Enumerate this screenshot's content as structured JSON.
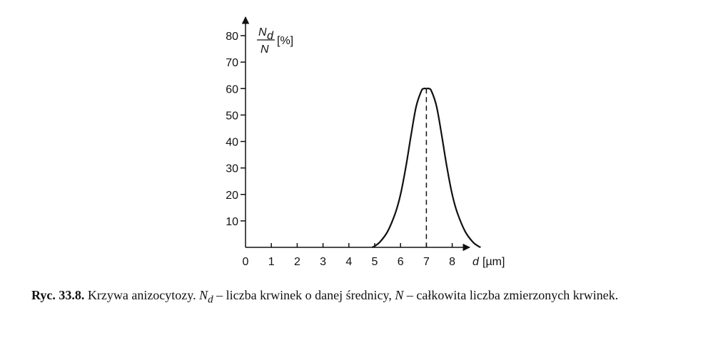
{
  "chart_data": {
    "type": "line",
    "x_tick_labels": [
      "0",
      "1",
      "2",
      "3",
      "4",
      "5",
      "6",
      "7",
      "8"
    ],
    "y_tick_labels": [
      "10",
      "20",
      "30",
      "40",
      "50",
      "60",
      "70",
      "80"
    ],
    "xlim": [
      0,
      10
    ],
    "ylim": [
      0,
      85
    ],
    "xlabel": {
      "var": "d",
      "unit": "[µm]"
    },
    "ylabel": {
      "numerator": "N",
      "numerator_sub": "d",
      "denominator": "N",
      "unit": "[%]"
    },
    "grid": false,
    "series": [
      {
        "x": [
          4.9,
          5.0,
          5.2,
          5.5,
          5.8,
          6.0,
          6.2,
          6.4,
          6.6,
          6.8,
          6.9,
          7.0,
          7.1,
          7.2,
          7.4,
          7.6,
          7.8,
          8.0,
          8.2,
          8.5,
          8.8,
          9.0,
          9.1
        ],
        "y": [
          0,
          0.5,
          2,
          6,
          13,
          20,
          30,
          42,
          53,
          59,
          60,
          60,
          60,
          59,
          53,
          42,
          30,
          20,
          13,
          6,
          2,
          0.5,
          0
        ]
      }
    ],
    "annotation": {
      "type": "dashed-vertical",
      "x": 7,
      "y": 60
    }
  },
  "caption": {
    "label": "Ryc. 33.8.",
    "text_before": "Krzywa anizocytozy.",
    "sym_nd": "N",
    "sym_nd_sub": "d",
    "text_nd": "– liczba krwinek o danej średnicy,",
    "sym_n": "N",
    "text_n": "– całkowita liczba zmierzonych krwinek."
  }
}
